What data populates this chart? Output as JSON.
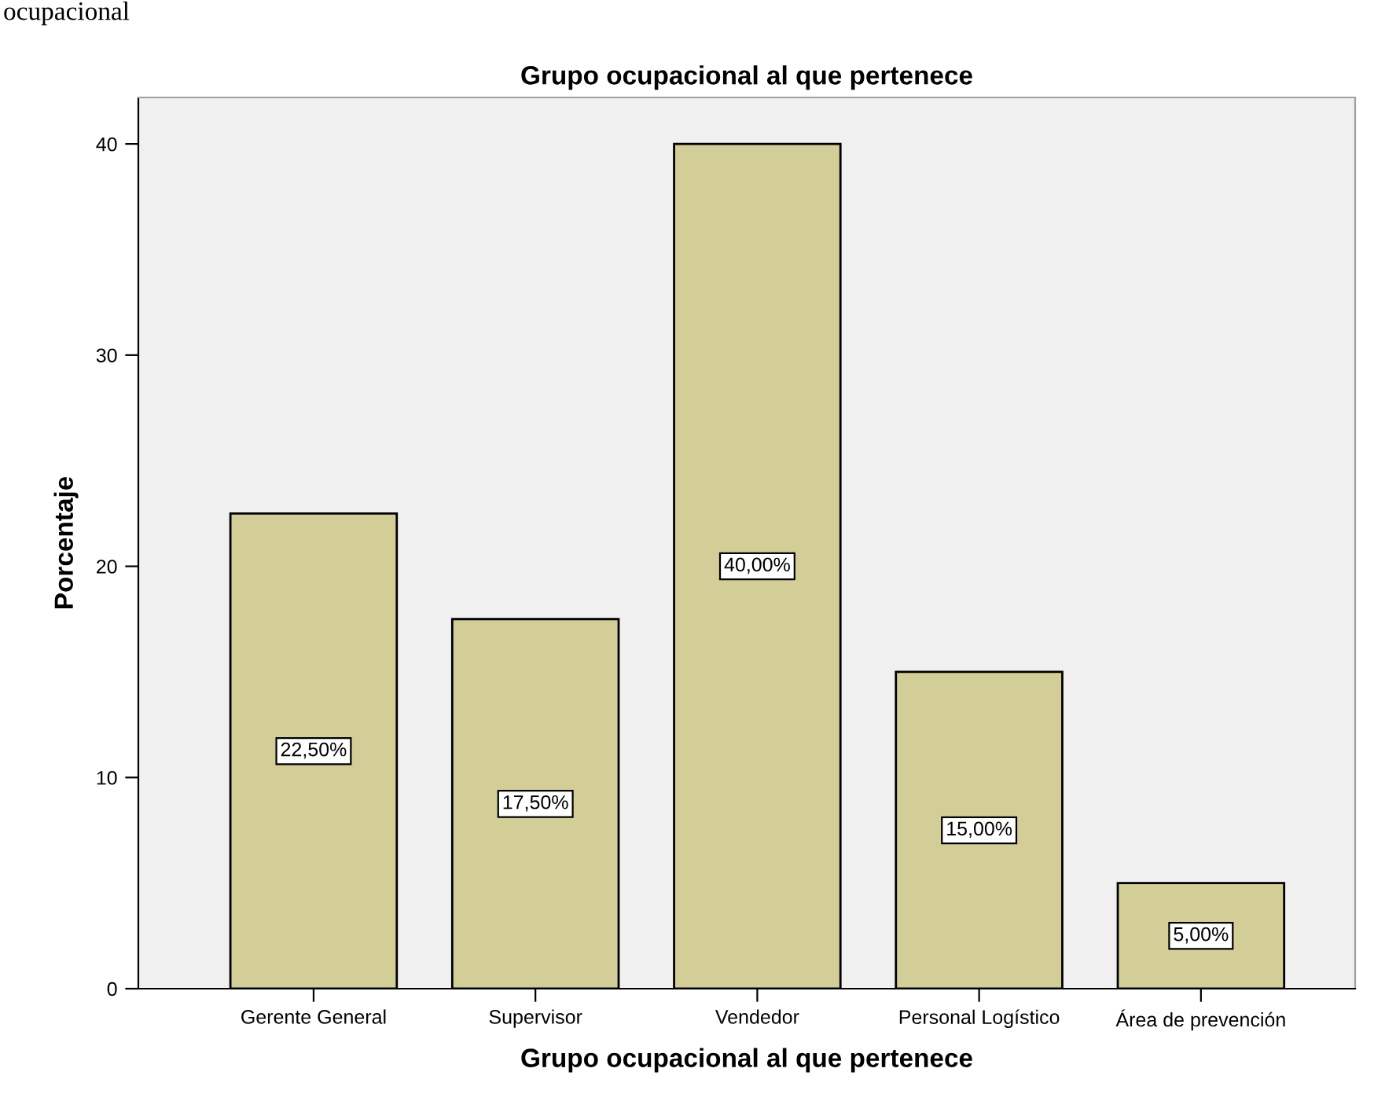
{
  "chart_data": {
    "type": "bar",
    "title": "Grupo ocupacional al que pertenece",
    "xlabel": "Grupo ocupacional al que pertenece",
    "ylabel": "Porcentaje",
    "categories": [
      "Gerente General",
      "Supervisor",
      "Vendedor",
      "Personal Logístico",
      "Área de prevención"
    ],
    "values": [
      22.5,
      17.5,
      40,
      15,
      5
    ],
    "color": "#d3ce97",
    "value_labels": [
      "22,50%",
      "17,50%",
      "40,00%",
      "15,00%",
      "5,00%"
    ],
    "ylim": [
      0,
      42.2
    ],
    "yticks": [
      0,
      10,
      20,
      30,
      40
    ],
    "grid": false,
    "annotations": [
      "ocupacional"
    ]
  }
}
